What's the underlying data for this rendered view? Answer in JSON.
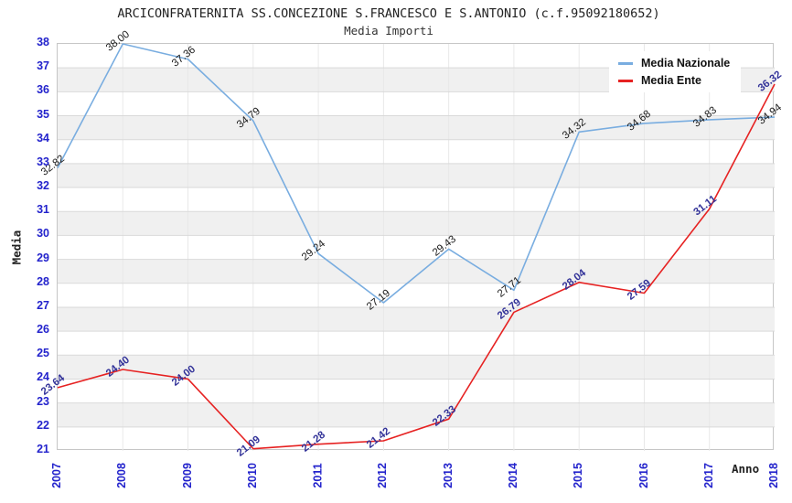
{
  "title": "ARCICONFRATERNITA SS.CONCEZIONE S.FRANCESCO E S.ANTONIO (c.f.95092180652)",
  "subtitle": "Media Importi",
  "chart_data": {
    "type": "line",
    "title": "ARCICONFRATERNITA SS.CONCEZIONE S.FRANCESCO E S.ANTONIO (c.f.95092180652)",
    "subtitle": "Media Importi",
    "xlabel": "Anno",
    "ylabel": "Media",
    "x": [
      2007,
      2008,
      2009,
      2010,
      2011,
      2012,
      2013,
      2014,
      2015,
      2016,
      2017,
      2018
    ],
    "ylim": [
      21,
      38
    ],
    "y_tick_step": 1,
    "grid": true,
    "legend_position": "top-right",
    "series": [
      {
        "name": "Media Nazionale",
        "color": "#79ade0",
        "label_color": "#1a1a1a",
        "label_bold": false,
        "values": [
          32.82,
          38.0,
          37.36,
          34.79,
          29.24,
          27.19,
          29.43,
          27.71,
          34.32,
          34.68,
          34.83,
          34.94
        ]
      },
      {
        "name": "Media Ente",
        "color": "#e62222",
        "label_color": "#333399",
        "label_bold": true,
        "values": [
          23.64,
          24.4,
          24.0,
          21.09,
          21.28,
          21.42,
          22.33,
          26.79,
          28.04,
          27.59,
          31.11,
          36.32
        ]
      }
    ],
    "colors": {
      "tick_labels": "#2323cc",
      "band": "#f0f0f0",
      "h_grid": "#d9d9d9",
      "v_grid": "#e8e8e8",
      "plot_border": "#c6c6c6"
    }
  }
}
